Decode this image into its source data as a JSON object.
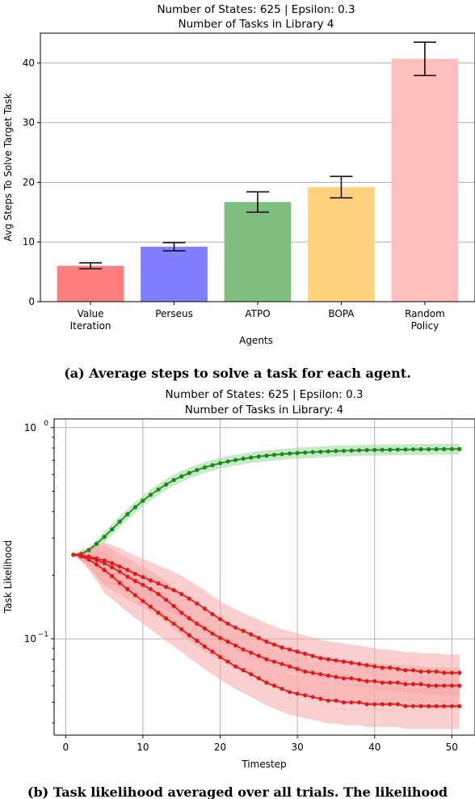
{
  "chart_data": [
    {
      "type": "bar",
      "title_line1": "Number of States: 625 | Epsilon: 0.3",
      "title_line2": "Number of Tasks in Library 4",
      "xlabel": "Agents",
      "ylabel": "Avg Steps To Solve Target Task",
      "ylim": [
        0,
        45
      ],
      "yticks": [
        "0",
        "10",
        "20",
        "30",
        "40"
      ],
      "grid": "horizontal",
      "categories": [
        {
          "line1": "Value",
          "line2": "Iteration"
        },
        {
          "line1": "Perseus",
          "line2": ""
        },
        {
          "line1": "ATPO",
          "line2": ""
        },
        {
          "line1": "BOPA",
          "line2": ""
        },
        {
          "line1": "Random",
          "line2": "Policy"
        }
      ],
      "values": [
        6.0,
        9.2,
        16.7,
        19.2,
        40.7
      ],
      "error": [
        [
          5.5,
          6.5
        ],
        [
          8.5,
          9.9
        ],
        [
          15.0,
          18.4
        ],
        [
          17.4,
          21.0
        ],
        [
          37.9,
          43.5
        ]
      ],
      "colors": [
        "#ff7f7f",
        "#7f7fff",
        "#7fbf7f",
        "#ffd280",
        "#ffbfbf"
      ],
      "caption": "(a) Average steps to solve a task for each agent."
    },
    {
      "type": "line",
      "scale": "log-y",
      "title_line1": "Number of States: 625 | Epsilon: 0.3",
      "title_line2": "Number of Tasks in Library: 4",
      "xlabel": "Timestep",
      "ylabel": "Task Likelihood",
      "xlim": [
        -1.5,
        53
      ],
      "ylim": [
        0.035,
        1.1
      ],
      "xticks": [
        "0",
        "10",
        "20",
        "30",
        "40",
        "50"
      ],
      "ytick_major": [
        {
          "value": 1.0,
          "base": "10",
          "exp": "0"
        },
        {
          "value": 0.1,
          "base": "10",
          "exp": "−1"
        }
      ],
      "grid": "both",
      "caption": "(b) Task likelihood averaged over all trials. The likelihood",
      "series": [
        {
          "color": "#1a8a1a",
          "band": "#9ad79a",
          "band_pct": 6,
          "x": [
            1,
            2,
            3,
            4,
            5,
            6,
            7,
            8,
            9,
            10,
            11,
            12,
            13,
            14,
            15,
            16,
            17,
            18,
            19,
            20,
            21,
            22,
            23,
            24,
            25,
            26,
            27,
            28,
            29,
            30,
            31,
            32,
            33,
            34,
            35,
            36,
            37,
            38,
            39,
            40,
            41,
            42,
            43,
            44,
            45,
            46,
            47,
            48,
            49,
            50,
            51
          ],
          "y": [
            0.25,
            0.252,
            0.263,
            0.282,
            0.304,
            0.33,
            0.359,
            0.389,
            0.42,
            0.451,
            0.481,
            0.51,
            0.538,
            0.565,
            0.588,
            0.61,
            0.63,
            0.648,
            0.664,
            0.679,
            0.692,
            0.703,
            0.713,
            0.722,
            0.73,
            0.737,
            0.743,
            0.749,
            0.754,
            0.758,
            0.762,
            0.766,
            0.769,
            0.772,
            0.775,
            0.777,
            0.779,
            0.781,
            0.783,
            0.784,
            0.785,
            0.786,
            0.787,
            0.788,
            0.789,
            0.79,
            0.79,
            0.791,
            0.791,
            0.792,
            0.792
          ]
        },
        {
          "color": "#e31a1c",
          "band": "#f7a8a8",
          "band_pct": 22,
          "x": [
            1,
            2,
            3,
            4,
            5,
            6,
            7,
            8,
            9,
            10,
            11,
            12,
            13,
            14,
            15,
            16,
            17,
            18,
            19,
            20,
            21,
            22,
            23,
            24,
            25,
            26,
            27,
            28,
            29,
            30,
            31,
            32,
            33,
            34,
            35,
            36,
            37,
            38,
            39,
            40,
            41,
            42,
            43,
            44,
            45,
            46,
            47,
            48,
            49,
            50,
            51
          ],
          "y": [
            0.25,
            0.249,
            0.245,
            0.24,
            0.235,
            0.228,
            0.22,
            0.212,
            0.203,
            0.196,
            0.189,
            0.183,
            0.176,
            0.17,
            0.163,
            0.155,
            0.147,
            0.139,
            0.131,
            0.124,
            0.118,
            0.113,
            0.109,
            0.105,
            0.101,
            0.097,
            0.094,
            0.091,
            0.089,
            0.087,
            0.085,
            0.083,
            0.081,
            0.08,
            0.079,
            0.078,
            0.077,
            0.076,
            0.075,
            0.074,
            0.073,
            0.073,
            0.072,
            0.071,
            0.071,
            0.07,
            0.07,
            0.07,
            0.069,
            0.069,
            0.069
          ]
        },
        {
          "color": "#e31a1c",
          "band": "#f7a8a8",
          "band_pct": 22,
          "x": [
            1,
            2,
            3,
            4,
            5,
            6,
            7,
            8,
            9,
            10,
            11,
            12,
            13,
            14,
            15,
            16,
            17,
            18,
            19,
            20,
            21,
            22,
            23,
            24,
            25,
            26,
            27,
            28,
            29,
            30,
            31,
            32,
            33,
            34,
            35,
            36,
            37,
            38,
            39,
            40,
            41,
            42,
            43,
            44,
            45,
            46,
            47,
            48,
            49,
            50,
            51
          ],
          "y": [
            0.25,
            0.248,
            0.243,
            0.236,
            0.228,
            0.218,
            0.208,
            0.197,
            0.188,
            0.18,
            0.172,
            0.163,
            0.153,
            0.143,
            0.133,
            0.125,
            0.118,
            0.112,
            0.106,
            0.101,
            0.097,
            0.093,
            0.089,
            0.086,
            0.083,
            0.08,
            0.078,
            0.076,
            0.074,
            0.072,
            0.07,
            0.069,
            0.068,
            0.067,
            0.066,
            0.065,
            0.065,
            0.064,
            0.063,
            0.063,
            0.062,
            0.062,
            0.062,
            0.061,
            0.061,
            0.061,
            0.06,
            0.06,
            0.06,
            0.06,
            0.06
          ]
        },
        {
          "color": "#e31a1c",
          "band": "#f7a8a8",
          "band_pct": 22,
          "x": [
            1,
            2,
            3,
            4,
            5,
            6,
            7,
            8,
            9,
            10,
            11,
            12,
            13,
            14,
            15,
            16,
            17,
            18,
            19,
            20,
            21,
            22,
            23,
            24,
            25,
            26,
            27,
            28,
            29,
            30,
            31,
            32,
            33,
            34,
            35,
            36,
            37,
            38,
            39,
            40,
            41,
            42,
            43,
            44,
            45,
            46,
            47,
            48,
            49,
            50,
            51
          ],
          "y": [
            0.25,
            0.246,
            0.237,
            0.225,
            0.212,
            0.198,
            0.184,
            0.172,
            0.161,
            0.151,
            0.142,
            0.133,
            0.125,
            0.118,
            0.111,
            0.104,
            0.098,
            0.092,
            0.087,
            0.082,
            0.078,
            0.074,
            0.071,
            0.068,
            0.065,
            0.062,
            0.06,
            0.058,
            0.056,
            0.055,
            0.054,
            0.053,
            0.052,
            0.051,
            0.051,
            0.05,
            0.05,
            0.05,
            0.049,
            0.049,
            0.049,
            0.049,
            0.049,
            0.048,
            0.048,
            0.048,
            0.048,
            0.048,
            0.048,
            0.048,
            0.048
          ]
        }
      ]
    }
  ]
}
